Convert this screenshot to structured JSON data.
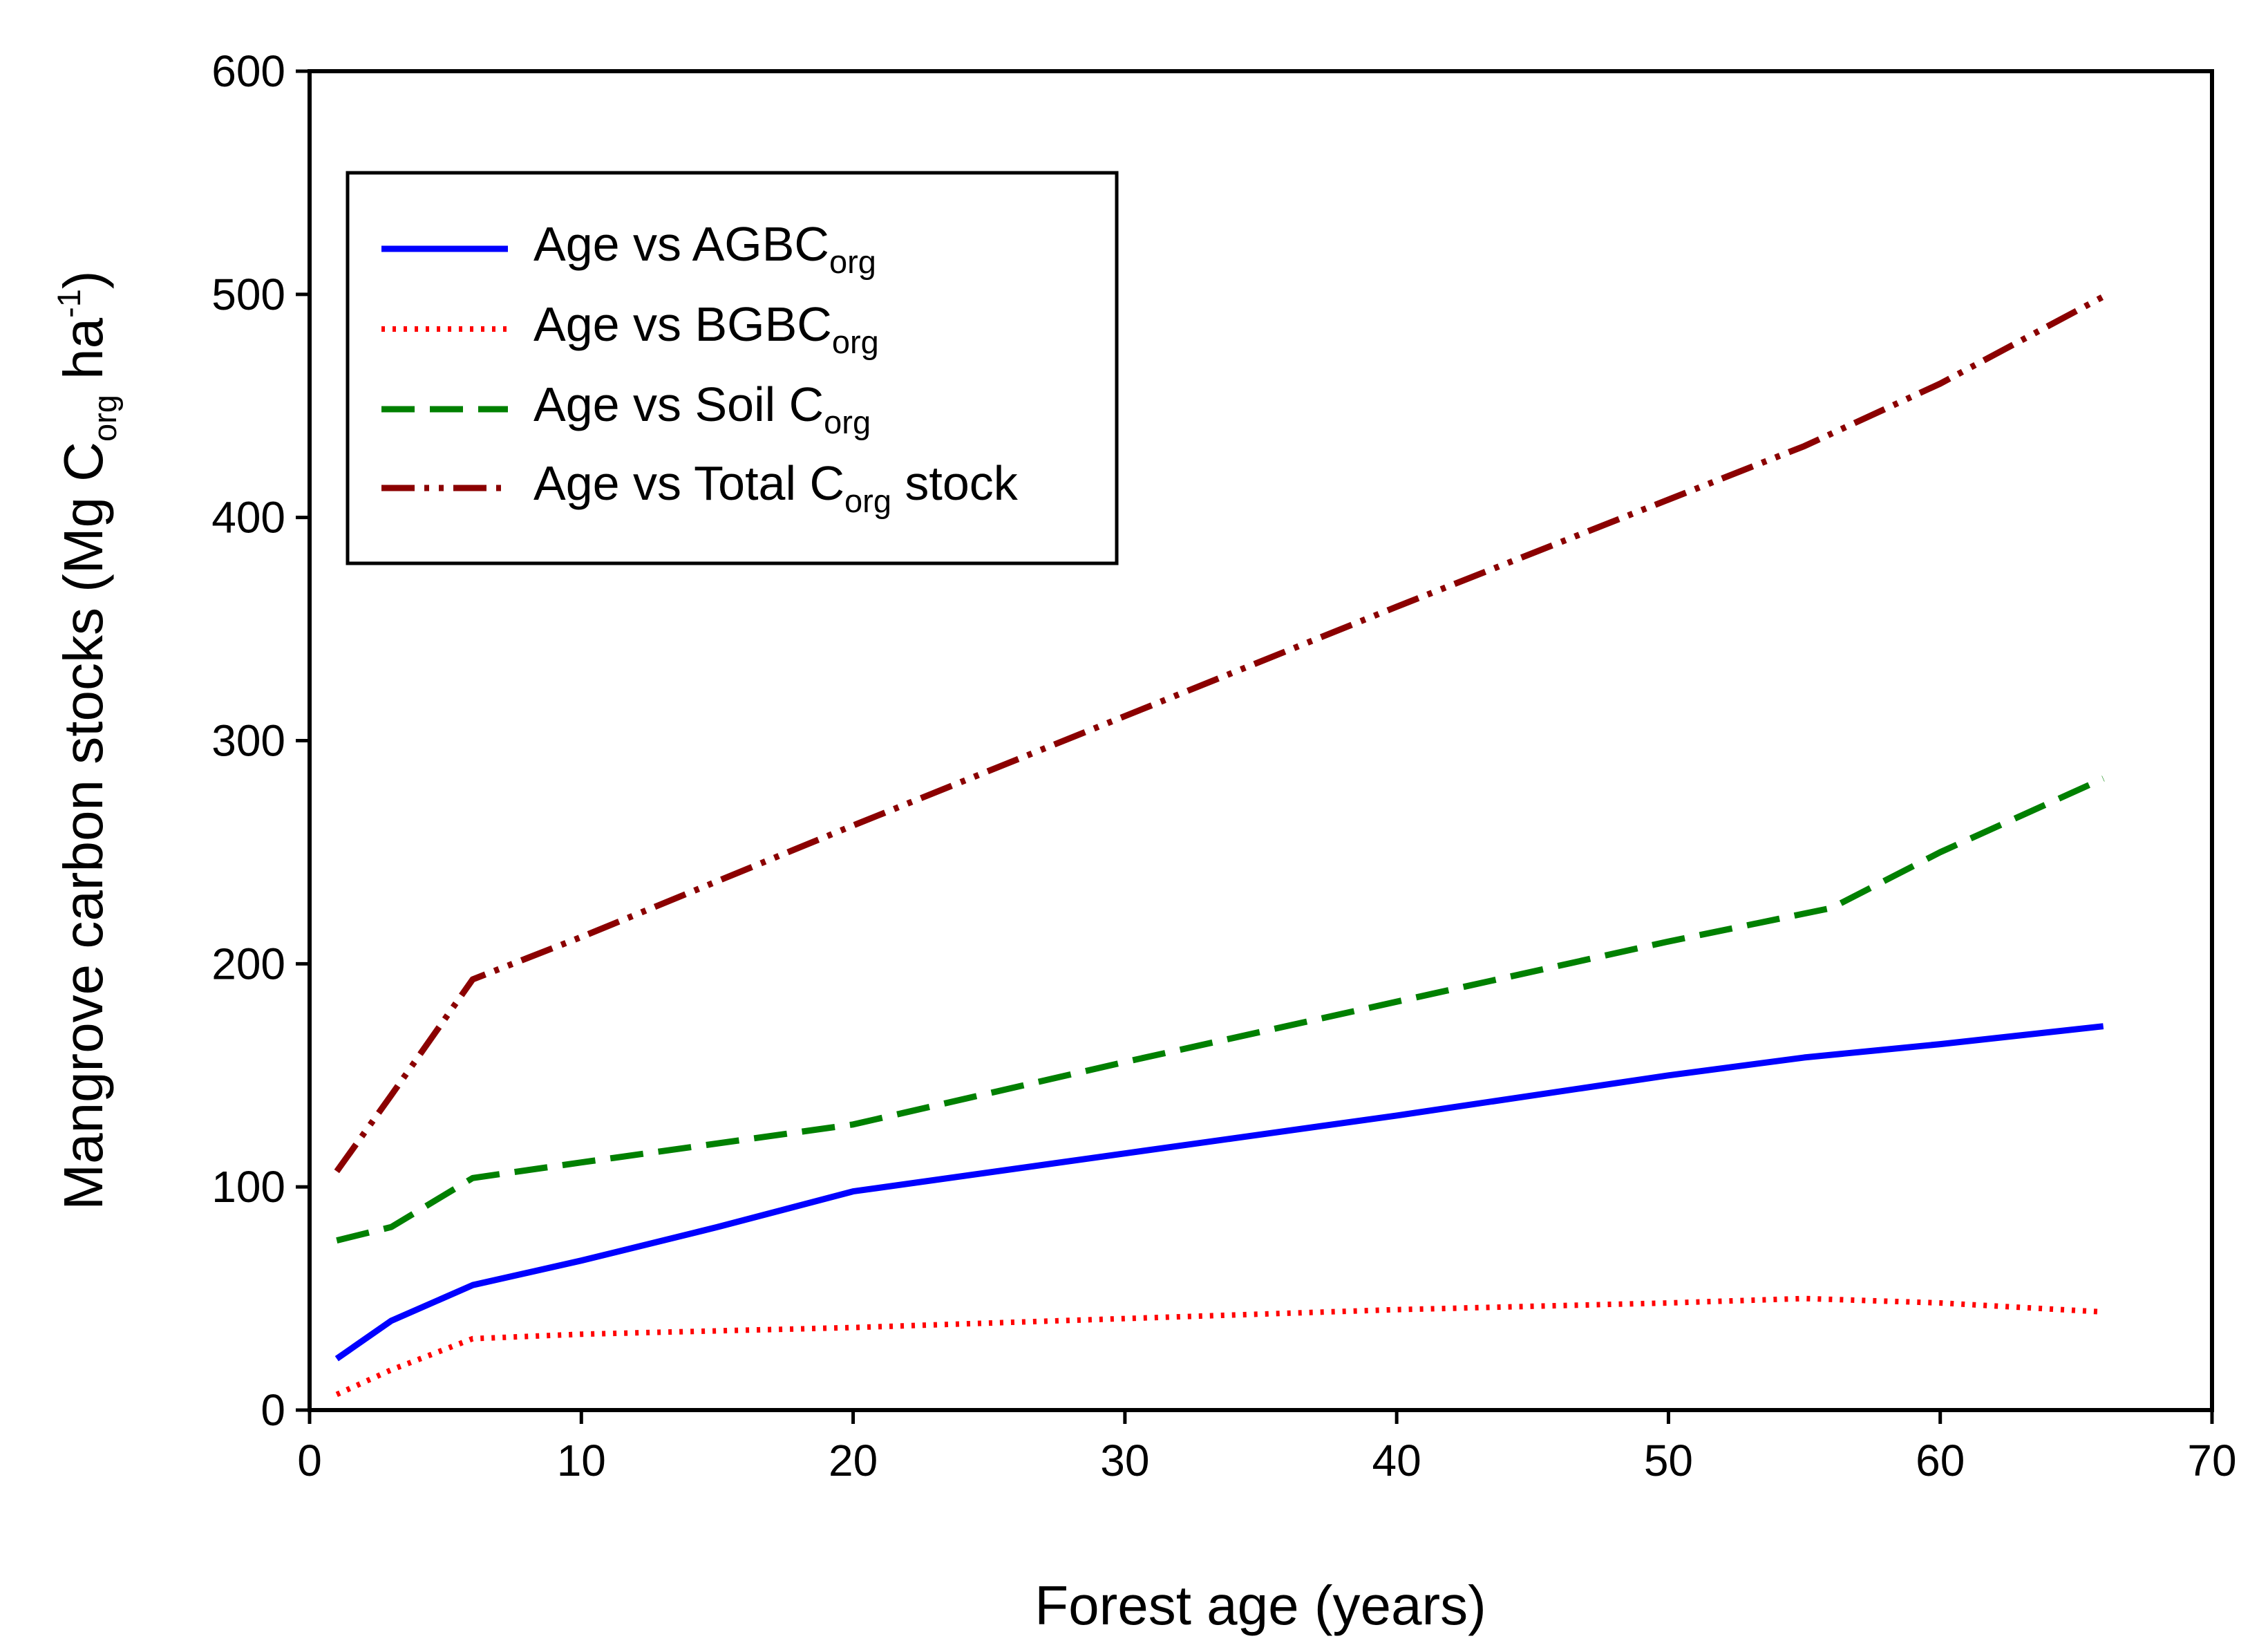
{
  "chart_data": {
    "type": "line",
    "title": "",
    "xlabel": "Forest age (years)",
    "ylabel": {
      "prefix": "Mangrove carbon stocks (Mg C",
      "sub": "org",
      "middle": " ha",
      "sup": "-1",
      "suffix": ")"
    },
    "xlim": [
      0,
      70
    ],
    "ylim": [
      0,
      600
    ],
    "xticks": [
      "0",
      "10",
      "20",
      "30",
      "40",
      "50",
      "60",
      "70"
    ],
    "yticks": [
      "0",
      "100",
      "200",
      "300",
      "400",
      "500",
      "600"
    ],
    "grid": false,
    "legend_position": "top-left",
    "series": [
      {
        "name": "Age vs AGBCorg",
        "label": {
          "prefix": "Age vs AGBC",
          "sub": "org",
          "suffix": ""
        },
        "color": "#0000ff",
        "style": "solid",
        "x": [
          1,
          3,
          6,
          10,
          15,
          20,
          30,
          40,
          50,
          55,
          60,
          66
        ],
        "y": [
          23,
          40,
          56,
          67,
          82,
          98,
          115,
          132,
          150,
          158,
          164,
          172
        ]
      },
      {
        "name": "Age vs BGBCorg",
        "label": {
          "prefix": "Age vs BGBC",
          "sub": "org",
          "suffix": ""
        },
        "color": "#ff0000",
        "style": "dotted",
        "x": [
          1,
          3,
          6,
          10,
          20,
          30,
          40,
          50,
          55,
          60,
          66
        ],
        "y": [
          7,
          18,
          32,
          34,
          37,
          41,
          45,
          48,
          50,
          48,
          44
        ]
      },
      {
        "name": "Age vs Soil Corg",
        "label": {
          "prefix": "Age vs Soil C",
          "sub": "org",
          "suffix": ""
        },
        "color": "#008000",
        "style": "dashed",
        "x": [
          1,
          3,
          6,
          10,
          20,
          30,
          40,
          50,
          56,
          60,
          66
        ],
        "y": [
          76,
          82,
          104,
          111,
          128,
          156,
          183,
          210,
          225,
          250,
          283
        ]
      },
      {
        "name": "Age vs Total Corg stock",
        "label": {
          "prefix": "Age vs Total C",
          "sub": "org",
          "suffix": " stock"
        },
        "color": "#8b0000",
        "style": "dashdotdot",
        "x": [
          1,
          3,
          6,
          10,
          20,
          30,
          40,
          50,
          55,
          60,
          66
        ],
        "y": [
          107,
          141,
          193,
          212,
          262,
          311,
          360,
          408,
          432,
          460,
          499
        ]
      }
    ]
  }
}
